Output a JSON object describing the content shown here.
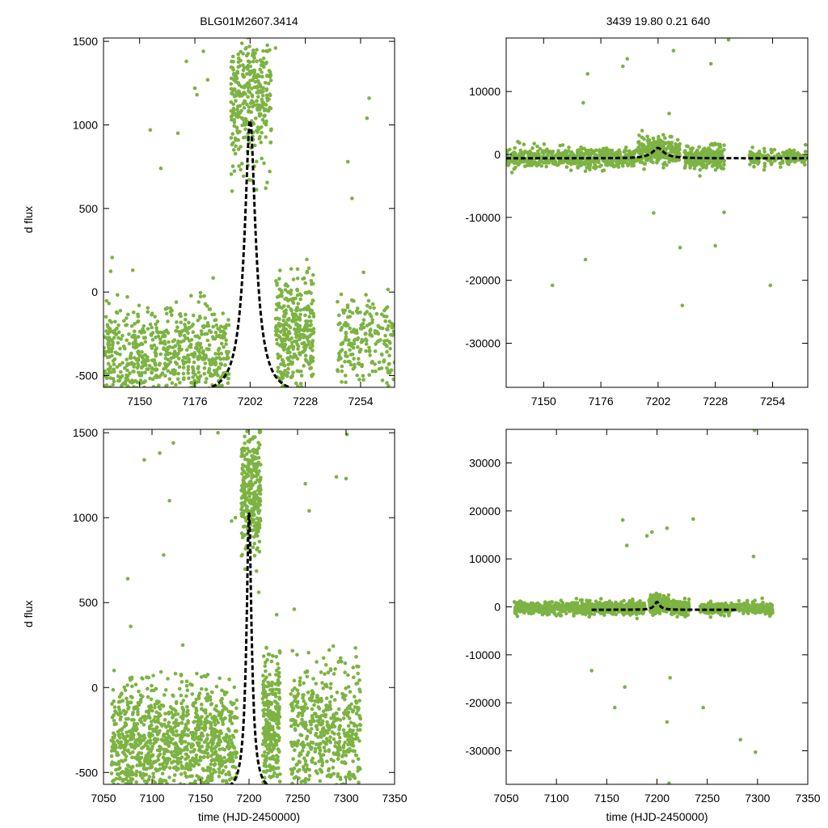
{
  "header": {
    "left_title": "BLG01M2607.3414",
    "right_title": "3439  19.80  0.21  640"
  },
  "colors": {
    "points": "#7cb342",
    "model": "#000000",
    "axes": "#000000"
  },
  "chart_data": [
    {
      "id": "top-left",
      "type": "scatter",
      "title": "BLG01M2607.3414",
      "xlabel": "",
      "ylabel": "d flux",
      "xlim": [
        7133,
        7270
      ],
      "ylim": [
        -570,
        1520
      ],
      "xticks": [
        7150,
        7176,
        7202,
        7228,
        7254
      ],
      "yticks": [
        -500,
        0,
        500,
        1000,
        1500
      ],
      "model": {
        "type": "pspl",
        "t0": 7202,
        "tE": 9,
        "u0": 0.26,
        "baseline": -600,
        "peak": 1030,
        "x_range": [
          7133,
          7270
        ]
      },
      "point_clouds": [
        {
          "x_range": [
            7133,
            7192
          ],
          "y_center": -380,
          "y_spread": 300,
          "count": 700,
          "seed": 11
        },
        {
          "x_range": [
            7193,
            7212
          ],
          "y_center": 1150,
          "y_spread": 380,
          "count": 330,
          "seed": 12
        },
        {
          "x_range": [
            7214,
            7232
          ],
          "y_center": -250,
          "y_spread": 320,
          "count": 350,
          "seed": 13
        },
        {
          "x_range": [
            7243,
            7270
          ],
          "y_center": -300,
          "y_spread": 270,
          "count": 220,
          "seed": 14
        }
      ],
      "outliers": [
        [
          7155,
          970
        ],
        [
          7160,
          740
        ],
        [
          7168,
          950
        ],
        [
          7172,
          1380
        ],
        [
          7176,
          1220
        ],
        [
          7177,
          1180
        ],
        [
          7180,
          1440
        ],
        [
          7182,
          1270
        ],
        [
          7214,
          1460
        ],
        [
          7248,
          780
        ],
        [
          7250,
          560
        ],
        [
          7258,
          1160
        ],
        [
          7257,
          1040
        ]
      ]
    },
    {
      "id": "top-right",
      "type": "scatter",
      "title": "3439  19.80  0.21  640",
      "xlabel": "",
      "ylabel": "",
      "xlim": [
        7133,
        7270
      ],
      "ylim": [
        -37000,
        18500
      ],
      "xticks": [
        7150,
        7176,
        7202,
        7228,
        7254
      ],
      "yticks": [
        -30000,
        -20000,
        -10000,
        0,
        10000
      ],
      "model": {
        "type": "pspl",
        "t0": 7202,
        "tE": 9,
        "u0": 0.26,
        "baseline": -600,
        "peak": 1030,
        "x_range": [
          7133,
          7270
        ]
      },
      "point_clouds": [
        {
          "x_range": [
            7133,
            7192
          ],
          "y_center": -500,
          "y_spread": 1400,
          "count": 600,
          "seed": 21
        },
        {
          "x_range": [
            7193,
            7212
          ],
          "y_center": 600,
          "y_spread": 1800,
          "count": 280,
          "seed": 22
        },
        {
          "x_range": [
            7214,
            7232
          ],
          "y_center": -400,
          "y_spread": 1500,
          "count": 260,
          "seed": 23
        },
        {
          "x_range": [
            7243,
            7270
          ],
          "y_center": -500,
          "y_spread": 1200,
          "count": 160,
          "seed": 24
        }
      ],
      "outliers": [
        [
          7154,
          -20800
        ],
        [
          7169,
          -16700
        ],
        [
          7170,
          12800
        ],
        [
          7186,
          14000
        ],
        [
          7188,
          15200
        ],
        [
          7200,
          -9300
        ],
        [
          7209,
          16500
        ],
        [
          7212,
          -14800
        ],
        [
          7213,
          -24000
        ],
        [
          7226,
          14400
        ],
        [
          7228,
          -14500
        ],
        [
          7232,
          -9200
        ],
        [
          7253,
          -20800
        ],
        [
          7234,
          18200
        ],
        [
          7168,
          8200
        ],
        [
          7207,
          6500
        ]
      ]
    },
    {
      "id": "bottom-left",
      "type": "scatter",
      "title": "",
      "xlabel": "time (HJD-2450000)",
      "ylabel": "d flux",
      "xlim": [
        7050,
        7350
      ],
      "ylim": [
        -570,
        1520
      ],
      "xticks": [
        7050,
        7100,
        7150,
        7200,
        7250,
        7300,
        7350
      ],
      "yticks": [
        -500,
        0,
        500,
        1000,
        1500
      ],
      "model": {
        "type": "pspl",
        "t0": 7200,
        "tE": 9,
        "u0": 0.26,
        "baseline": -600,
        "peak": 1030,
        "x_range": [
          7135,
          7265
        ]
      },
      "point_clouds": [
        {
          "x_range": [
            7058,
            7188
          ],
          "y_center": -330,
          "y_spread": 330,
          "count": 1100,
          "seed": 31
        },
        {
          "x_range": [
            7192,
            7212
          ],
          "y_center": 1150,
          "y_spread": 360,
          "count": 320,
          "seed": 32
        },
        {
          "x_range": [
            7214,
            7232
          ],
          "y_center": -200,
          "y_spread": 380,
          "count": 280,
          "seed": 33
        },
        {
          "x_range": [
            7243,
            7315
          ],
          "y_center": -270,
          "y_spread": 380,
          "count": 520,
          "seed": 34
        }
      ],
      "outliers": [
        [
          7075,
          640
        ],
        [
          7078,
          360
        ],
        [
          7092,
          1340
        ],
        [
          7108,
          1380
        ],
        [
          7112,
          780
        ],
        [
          7118,
          1100
        ],
        [
          7122,
          1440
        ],
        [
          7168,
          1500
        ],
        [
          7182,
          980
        ],
        [
          7186,
          1000
        ],
        [
          7258,
          1200
        ],
        [
          7262,
          1040
        ],
        [
          7290,
          1240
        ],
        [
          7301,
          1490
        ],
        [
          7300,
          1230
        ]
      ]
    },
    {
      "id": "bottom-right",
      "type": "scatter",
      "title": "",
      "xlabel": "time (HJD-2450000)",
      "ylabel": "",
      "xlim": [
        7050,
        7350
      ],
      "ylim": [
        -37000,
        37000
      ],
      "xticks": [
        7050,
        7100,
        7150,
        7200,
        7250,
        7300,
        7350
      ],
      "yticks": [
        -30000,
        -20000,
        -10000,
        0,
        10000,
        20000,
        30000
      ],
      "model": {
        "type": "pspl",
        "t0": 7200,
        "tE": 9,
        "u0": 0.26,
        "baseline": -600,
        "peak": 1030,
        "x_range": [
          7135,
          7280
        ]
      },
      "point_clouds": [
        {
          "x_range": [
            7058,
            7188
          ],
          "y_center": -300,
          "y_spread": 1200,
          "count": 700,
          "seed": 41
        },
        {
          "x_range": [
            7192,
            7212
          ],
          "y_center": 600,
          "y_spread": 1800,
          "count": 240,
          "seed": 42
        },
        {
          "x_range": [
            7214,
            7232
          ],
          "y_center": -300,
          "y_spread": 1400,
          "count": 220,
          "seed": 43
        },
        {
          "x_range": [
            7243,
            7315
          ],
          "y_center": -300,
          "y_spread": 1100,
          "count": 380,
          "seed": 44
        }
      ],
      "outliers": [
        [
          7135,
          -13300
        ],
        [
          7158,
          -21000
        ],
        [
          7166,
          18100
        ],
        [
          7168,
          -16700
        ],
        [
          7170,
          12800
        ],
        [
          7190,
          14800
        ],
        [
          7195,
          15600
        ],
        [
          7210,
          16400
        ],
        [
          7213,
          -14800
        ],
        [
          7210,
          -24000
        ],
        [
          7212,
          -36800
        ],
        [
          7236,
          18300
        ],
        [
          7246,
          -21000
        ],
        [
          7283,
          -27700
        ],
        [
          7298,
          -30300
        ],
        [
          7297,
          36800
        ],
        [
          7296,
          10500
        ]
      ]
    }
  ]
}
